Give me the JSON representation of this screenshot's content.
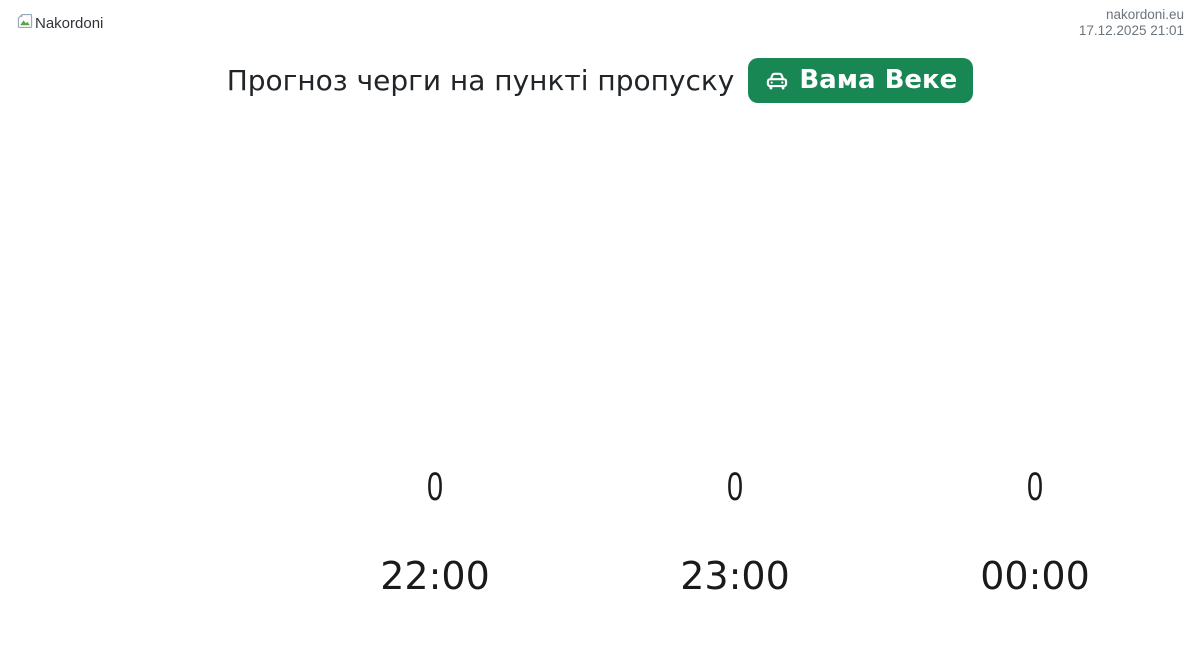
{
  "header": {
    "logo_alt": "Nakordoni",
    "site_domain": "nakordoni.eu",
    "generated_at": "17.12.2025 21:01"
  },
  "main": {
    "title": "Прогноз черги на пункті пропуску",
    "badge": {
      "label": "Вама Веке",
      "icon": "car-front-icon",
      "color": "#198754"
    }
  },
  "colors": {
    "badge_green": "#198754",
    "badge_text": "#ffffff",
    "title_text": "#212529",
    "meta_text": "#6c757d",
    "chart_label_text": "#1a1a1a"
  },
  "chart_data": {
    "type": "bar",
    "categories": [
      "22:00",
      "23:00",
      "00:00"
    ],
    "values": [
      0,
      0,
      0
    ],
    "title": "Прогноз черги на пункті пропуску Вама Веке",
    "xlabel": "",
    "ylabel": "",
    "ylim": [
      0,
      1
    ],
    "grid": false,
    "legend": false,
    "value_label_position": "above bars"
  }
}
